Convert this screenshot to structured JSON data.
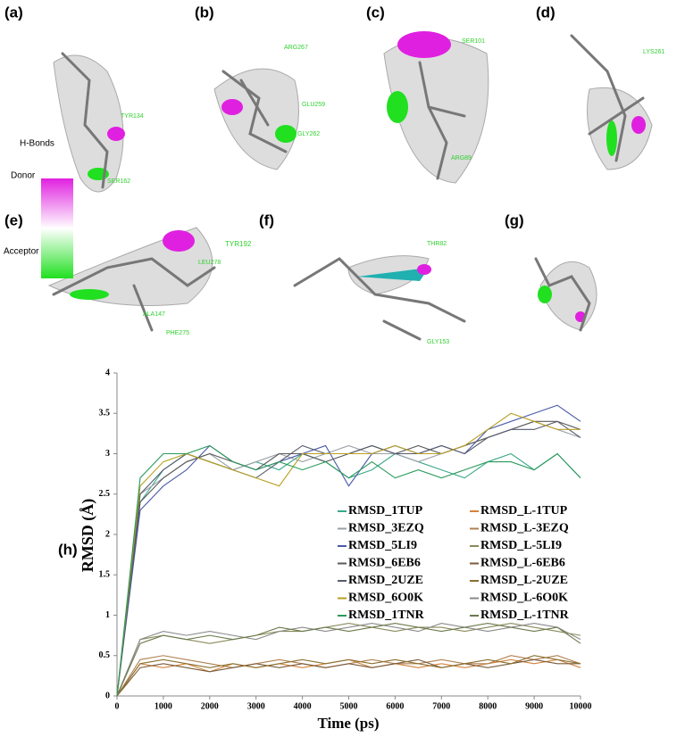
{
  "panels": [
    {
      "label": "(a)",
      "residues": [
        "TYR134",
        "SER162"
      ]
    },
    {
      "label": "(b)",
      "residues": [
        "ARG267",
        "GLU259",
        "GLY262"
      ]
    },
    {
      "label": "(c)",
      "residues": [
        "SER101",
        "ARG89"
      ]
    },
    {
      "label": "(d)",
      "residues": [
        "LYS261"
      ]
    },
    {
      "label": "(e)",
      "residues": [
        "TYR192",
        "LEU278",
        "ALA147",
        "PHE275"
      ]
    },
    {
      "label": "(f)",
      "residues": [
        "THR82",
        "GLY153"
      ]
    },
    {
      "label": "(g)",
      "residues": []
    }
  ],
  "hbond_legend": {
    "title": "H-Bonds",
    "top": "Donor",
    "bottom": "Acceptor"
  },
  "chart_data": {
    "type": "line",
    "panel_label": "(h)",
    "x_label": "Time (ps)",
    "y_label": "RMSD (Å)",
    "xlim": [
      0,
      10000
    ],
    "xticks": [
      0,
      1000,
      2000,
      3000,
      4000,
      5000,
      6000,
      7000,
      8000,
      9000,
      10000
    ],
    "ylim": [
      0,
      4
    ],
    "yticks": [
      0,
      0.5,
      1,
      1.5,
      2,
      2.5,
      3,
      3.5,
      4
    ],
    "x": [
      0,
      500,
      1000,
      1500,
      2000,
      2500,
      3000,
      3500,
      4000,
      4500,
      5000,
      5500,
      6000,
      6500,
      7000,
      7500,
      8000,
      8500,
      9000,
      9500,
      10000
    ],
    "series": [
      {
        "name": "RMSD_1TUP",
        "color": "#3aa88a",
        "values": [
          0,
          2.4,
          2.8,
          3.0,
          2.9,
          2.8,
          2.9,
          2.8,
          3.0,
          2.9,
          2.7,
          2.8,
          3.0,
          2.9,
          2.8,
          2.7,
          2.9,
          3.0,
          2.8,
          3.0,
          2.7
        ]
      },
      {
        "name": "RMSD_3EZQ",
        "color": "#9aa0a6",
        "values": [
          0,
          2.5,
          2.7,
          2.9,
          3.0,
          2.8,
          2.9,
          3.0,
          2.9,
          3.0,
          3.1,
          3.0,
          3.0,
          2.9,
          3.0,
          3.1,
          3.2,
          3.3,
          3.4,
          3.3,
          3.2
        ]
      },
      {
        "name": "RMSD_5LI9",
        "color": "#4a5aa8",
        "values": [
          0,
          2.3,
          2.6,
          2.8,
          3.1,
          2.9,
          2.8,
          2.9,
          3.0,
          3.1,
          2.6,
          3.0,
          3.1,
          3.0,
          3.1,
          3.0,
          3.3,
          3.4,
          3.5,
          3.6,
          3.4
        ]
      },
      {
        "name": "RMSD_6EB6",
        "color": "#5a5a5a",
        "values": [
          0,
          2.4,
          2.7,
          2.9,
          3.0,
          2.9,
          2.8,
          3.0,
          3.0,
          2.9,
          3.0,
          3.1,
          3.0,
          3.1,
          3.0,
          3.1,
          3.2,
          3.3,
          3.4,
          3.4,
          3.3
        ]
      },
      {
        "name": "RMSD_2UZE",
        "color": "#555b6a",
        "values": [
          0,
          2.5,
          2.8,
          3.0,
          2.9,
          2.8,
          2.7,
          2.9,
          3.1,
          3.0,
          3.0,
          3.1,
          3.0,
          3.0,
          3.1,
          3.0,
          3.2,
          3.3,
          3.3,
          3.4,
          3.2
        ]
      },
      {
        "name": "RMSD_6O0K",
        "color": "#b8a020",
        "values": [
          0,
          2.6,
          2.9,
          3.0,
          2.9,
          2.8,
          2.7,
          2.6,
          3.0,
          3.0,
          3.0,
          3.0,
          3.1,
          3.0,
          3.0,
          3.1,
          3.3,
          3.5,
          3.4,
          3.3,
          3.3
        ]
      },
      {
        "name": "RMSD_1TNR",
        "color": "#2a9a5a",
        "values": [
          0,
          2.7,
          3.0,
          3.0,
          3.1,
          2.9,
          2.8,
          2.9,
          2.8,
          2.9,
          2.7,
          2.9,
          2.7,
          2.8,
          2.7,
          2.8,
          2.9,
          2.9,
          2.8,
          3.0,
          2.7
        ]
      },
      {
        "name": "RMSD_L-1TUP",
        "color": "#d4823a",
        "values": [
          0,
          0.4,
          0.35,
          0.4,
          0.3,
          0.4,
          0.35,
          0.4,
          0.35,
          0.4,
          0.45,
          0.35,
          0.4,
          0.35,
          0.4,
          0.35,
          0.4,
          0.45,
          0.4,
          0.45,
          0.35
        ]
      },
      {
        "name": "RMSD_L-3EZQ",
        "color": "#b08050",
        "values": [
          0,
          0.45,
          0.5,
          0.45,
          0.4,
          0.35,
          0.4,
          0.45,
          0.4,
          0.35,
          0.4,
          0.45,
          0.4,
          0.4,
          0.45,
          0.4,
          0.4,
          0.5,
          0.45,
          0.5,
          0.4
        ]
      },
      {
        "name": "RMSD_L-5LI9",
        "color": "#8a8a5a",
        "values": [
          0,
          0.7,
          0.75,
          0.7,
          0.65,
          0.7,
          0.75,
          0.8,
          0.8,
          0.85,
          0.9,
          0.85,
          0.8,
          0.85,
          0.85,
          0.8,
          0.85,
          0.9,
          0.85,
          0.8,
          0.75
        ]
      },
      {
        "name": "RMSD_L-6EB6",
        "color": "#7a5a3a",
        "values": [
          0,
          0.35,
          0.4,
          0.35,
          0.3,
          0.35,
          0.4,
          0.35,
          0.4,
          0.35,
          0.4,
          0.35,
          0.4,
          0.45,
          0.35,
          0.4,
          0.35,
          0.4,
          0.45,
          0.4,
          0.4
        ]
      },
      {
        "name": "RMSD_L-2UZE",
        "color": "#8a7030",
        "values": [
          0,
          0.4,
          0.45,
          0.4,
          0.35,
          0.4,
          0.35,
          0.4,
          0.45,
          0.4,
          0.45,
          0.4,
          0.45,
          0.4,
          0.35,
          0.4,
          0.45,
          0.4,
          0.5,
          0.45,
          0.4
        ]
      },
      {
        "name": "RMSD_L-6O0K",
        "color": "#8a8a8a",
        "values": [
          0,
          0.7,
          0.8,
          0.75,
          0.8,
          0.75,
          0.7,
          0.8,
          0.85,
          0.8,
          0.85,
          0.9,
          0.85,
          0.8,
          0.9,
          0.85,
          0.8,
          0.85,
          0.9,
          0.85,
          0.7
        ]
      },
      {
        "name": "RMSD_L-1TNR",
        "color": "#6a7a4a",
        "values": [
          0,
          0.65,
          0.75,
          0.7,
          0.75,
          0.7,
          0.75,
          0.85,
          0.8,
          0.85,
          0.8,
          0.85,
          0.9,
          0.85,
          0.8,
          0.85,
          0.9,
          0.85,
          0.8,
          0.85,
          0.65
        ]
      }
    ]
  }
}
